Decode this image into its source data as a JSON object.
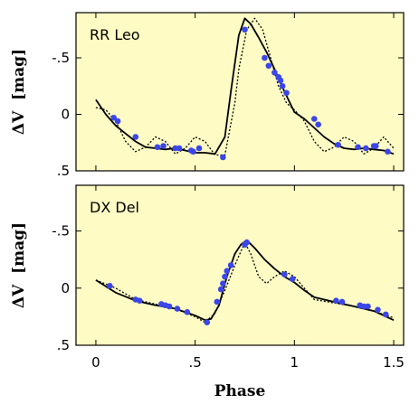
{
  "chart_data": [
    {
      "type": "line",
      "panel_label": "RR Leo",
      "xlabel": "Phase",
      "ylabel": "ΔV  [mag]",
      "xlim": [
        -0.1,
        1.55
      ],
      "ylim": [
        0.5,
        -0.9
      ],
      "y_inverted": true,
      "xticks": [
        0,
        0.5,
        1.0,
        1.5
      ],
      "xtick_labels": [
        "0",
        ".5",
        "1",
        "1.5"
      ],
      "yticks": [
        0.5,
        0,
        -0.5
      ],
      "ytick_labels": [
        ".5",
        "0",
        "-.5"
      ],
      "background_color": "#fefcc4",
      "series": [
        {
          "style": "solid",
          "color": "#000000",
          "x": [
            0.0,
            0.05,
            0.1,
            0.15,
            0.2,
            0.25,
            0.3,
            0.35,
            0.4,
            0.45,
            0.5,
            0.55,
            0.6,
            0.65,
            0.68,
            0.72,
            0.75,
            0.78,
            0.82,
            0.86,
            0.9,
            0.95,
            1.0,
            1.05,
            1.1,
            1.15,
            1.2,
            1.25,
            1.3,
            1.35,
            1.4,
            1.45,
            1.5
          ],
          "y": [
            -0.13,
            0.0,
            0.1,
            0.17,
            0.24,
            0.29,
            0.3,
            0.31,
            0.3,
            0.32,
            0.34,
            0.34,
            0.35,
            0.2,
            -0.2,
            -0.7,
            -0.85,
            -0.8,
            -0.68,
            -0.55,
            -0.4,
            -0.2,
            -0.02,
            0.04,
            0.12,
            0.2,
            0.26,
            0.3,
            0.31,
            0.3,
            0.31,
            0.32,
            0.35
          ]
        },
        {
          "style": "dotted",
          "color": "#000000",
          "x": [
            0.0,
            0.05,
            0.1,
            0.15,
            0.2,
            0.25,
            0.3,
            0.35,
            0.4,
            0.45,
            0.5,
            0.55,
            0.6,
            0.65,
            0.7,
            0.72,
            0.76,
            0.8,
            0.84,
            0.88,
            0.92,
            0.96,
            1.0,
            1.05,
            1.1,
            1.15,
            1.2,
            1.25,
            1.3,
            1.35,
            1.4,
            1.45,
            1.5
          ],
          "y": [
            -0.06,
            -0.04,
            0.06,
            0.24,
            0.33,
            0.29,
            0.2,
            0.24,
            0.35,
            0.3,
            0.2,
            0.24,
            0.36,
            0.36,
            -0.1,
            -0.4,
            -0.75,
            -0.85,
            -0.75,
            -0.5,
            -0.25,
            -0.1,
            -0.04,
            0.06,
            0.24,
            0.33,
            0.29,
            0.2,
            0.24,
            0.35,
            0.3,
            0.2,
            0.3
          ]
        },
        {
          "style": "points",
          "color": "#3b46e8",
          "x": [
            0.09,
            0.11,
            0.2,
            0.31,
            0.34,
            0.4,
            0.42,
            0.48,
            0.49,
            0.52,
            0.64,
            0.75,
            0.85,
            0.87,
            0.9,
            0.92,
            0.93,
            0.94,
            0.96,
            1.1,
            1.12,
            1.22,
            1.32,
            1.36,
            1.4,
            1.41,
            1.47
          ],
          "y": [
            0.03,
            0.06,
            0.2,
            0.29,
            0.28,
            0.3,
            0.3,
            0.32,
            0.33,
            0.3,
            0.38,
            -0.75,
            -0.5,
            -0.43,
            -0.37,
            -0.33,
            -0.3,
            -0.25,
            -0.19,
            0.04,
            0.09,
            0.27,
            0.29,
            0.3,
            0.28,
            0.28,
            0.33
          ]
        }
      ]
    },
    {
      "type": "line",
      "panel_label": "DX Del",
      "xlabel": "Phase",
      "ylabel": "ΔV  [mag]",
      "xlim": [
        -0.1,
        1.55
      ],
      "ylim": [
        0.5,
        -0.9
      ],
      "y_inverted": true,
      "xticks": [
        0,
        0.5,
        1.0,
        1.5
      ],
      "xtick_labels": [
        "0",
        ".5",
        "1",
        "1.5"
      ],
      "yticks": [
        0.5,
        0,
        -0.5
      ],
      "ytick_labels": [
        ".5",
        "0",
        "-.5"
      ],
      "background_color": "#fefcc4",
      "series": [
        {
          "style": "solid",
          "color": "#000000",
          "x": [
            0.0,
            0.1,
            0.2,
            0.3,
            0.4,
            0.5,
            0.55,
            0.58,
            0.62,
            0.66,
            0.7,
            0.73,
            0.76,
            0.8,
            0.85,
            0.9,
            0.95,
            1.0,
            1.05,
            1.1,
            1.2,
            1.3,
            1.4,
            1.5
          ],
          "y": [
            -0.07,
            0.04,
            0.11,
            0.15,
            0.18,
            0.24,
            0.28,
            0.27,
            0.15,
            -0.1,
            -0.3,
            -0.38,
            -0.42,
            -0.35,
            -0.25,
            -0.17,
            -0.1,
            -0.05,
            0.02,
            0.08,
            0.12,
            0.16,
            0.2,
            0.28
          ]
        },
        {
          "style": "dotted",
          "color": "#000000",
          "x": [
            0.0,
            0.1,
            0.2,
            0.3,
            0.4,
            0.5,
            0.55,
            0.6,
            0.65,
            0.7,
            0.75,
            0.78,
            0.82,
            0.86,
            0.9,
            0.95,
            1.0,
            1.05,
            1.1,
            1.2,
            1.3,
            1.4,
            1.5
          ],
          "y": [
            -0.07,
            0.0,
            0.1,
            0.14,
            0.18,
            0.25,
            0.3,
            0.22,
            0.02,
            -0.2,
            -0.4,
            -0.3,
            -0.1,
            -0.04,
            -0.1,
            -0.15,
            -0.1,
            0.0,
            0.1,
            0.13,
            0.16,
            0.2,
            0.26
          ]
        },
        {
          "style": "points",
          "color": "#3b46e8",
          "x": [
            0.07,
            0.2,
            0.22,
            0.33,
            0.35,
            0.37,
            0.41,
            0.46,
            0.56,
            0.61,
            0.63,
            0.64,
            0.65,
            0.66,
            0.68,
            0.75,
            0.76,
            0.95,
            0.99,
            1.21,
            1.24,
            1.33,
            1.35,
            1.37,
            1.42,
            1.46
          ],
          "y": [
            -0.02,
            0.1,
            0.11,
            0.14,
            0.15,
            0.16,
            0.18,
            0.21,
            0.3,
            0.12,
            0.01,
            -0.04,
            -0.1,
            -0.15,
            -0.2,
            -0.38,
            -0.4,
            -0.12,
            -0.08,
            0.11,
            0.12,
            0.15,
            0.16,
            0.16,
            0.19,
            0.23
          ]
        }
      ]
    }
  ]
}
